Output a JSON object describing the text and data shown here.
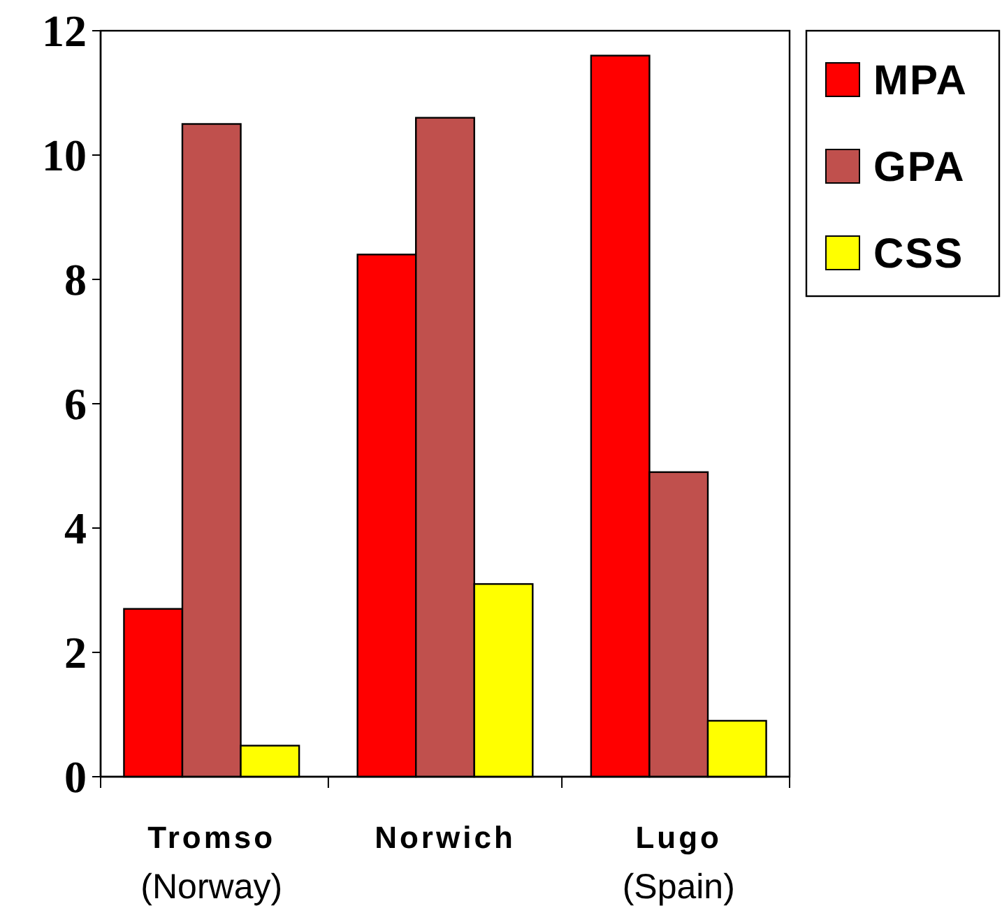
{
  "chart_data": {
    "type": "bar",
    "categories": [
      "Tromso\n(Norway)",
      "Norwich",
      "Lugo\n(Spain)"
    ],
    "series": [
      {
        "name": "MPA",
        "color": "#ff0000",
        "values": [
          2.7,
          8.4,
          11.6
        ]
      },
      {
        "name": "GPA",
        "color": "#c0504d",
        "values": [
          10.5,
          10.6,
          4.9
        ]
      },
      {
        "name": "CSS",
        "color": "#ffff00",
        "values": [
          0.5,
          3.1,
          0.9
        ]
      }
    ],
    "ylim": [
      0,
      12
    ],
    "yticks": [
      0,
      2,
      4,
      6,
      8,
      10,
      12
    ],
    "grid": false,
    "legend": "top right"
  }
}
